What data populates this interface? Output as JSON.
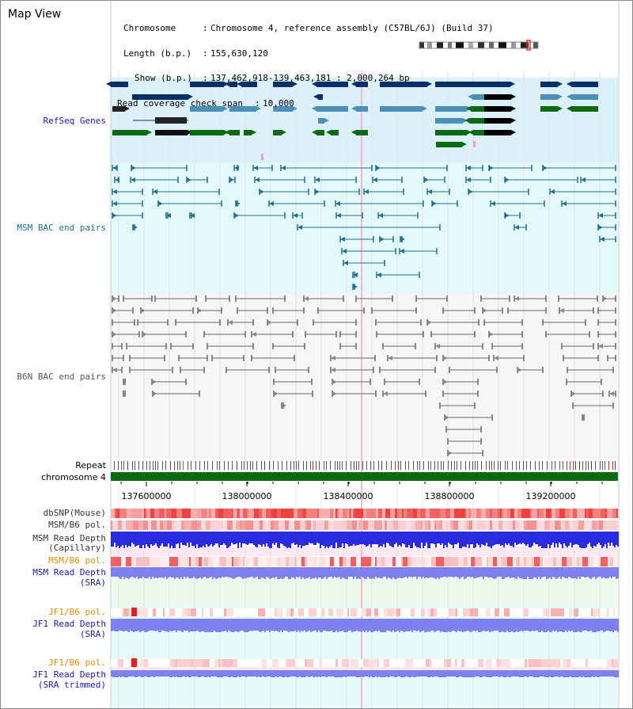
{
  "page_title": "Map View",
  "chromosome_info": {
    "chromosome_label": "Chromosome",
    "chromosome_value": "Chromosome 4, reference assembly (C57BL/6J) (Build 37)",
    "length_label": "Length (b.p.)",
    "length_value": "155,630,120",
    "show_label": "Show (b.p.)",
    "show_value": "137,462,918-139,463,181 : 2,000,264 bp",
    "coverage_label": "Read coverage check span",
    "coverage_value": "10,000"
  },
  "tracks": {
    "refseq": "RefSeq Genes",
    "msm_bac": "MSM BAC end pairs",
    "b6n_bac": "B6N BAC end pairs",
    "repeat": "Repeat",
    "chromosome": "chromosome 4",
    "dbsnp": "dbSNP(Mouse)",
    "msm_b6_pol_1": "MSM/B6 pol.",
    "msm_depth_cap_1": "MSM Read Depth",
    "msm_depth_cap_2": "(Capillary)",
    "msm_b6_pol_2": "MSM/B6 pol.",
    "msm_depth_sra_1": "MSM Read Depth",
    "msm_depth_sra_2": "(SRA)",
    "jf1_b6_pol_1": "JF1/B6 pol.",
    "jf1_depth_sra_1": "JF1 Read Depth",
    "jf1_depth_sra_2": "(SRA)",
    "jf1_b6_pol_2": "JF1/B6 pol.",
    "jf1_depth_trim_1": "JF1 Read Depth",
    "jf1_depth_trim_2": "(SRA trimmed)"
  },
  "ruler": {
    "ticks": [
      "137600000",
      "138000000",
      "138400000",
      "138800000",
      "139200000"
    ]
  },
  "colors": {
    "refseq_bg": "#dcf0fa",
    "msm_bg": "#e4fafa",
    "b6n_bg": "#f4f6f8",
    "refseq_dark": "#0b2f66",
    "refseq_mid": "#4a90b8",
    "refseq_green": "#0b6a12",
    "msm_bac": "#1c7090",
    "b6n_bac": "#666666",
    "chromosome_bar": "#0b6a12",
    "depth_blue": "#2a2ae0",
    "depth_light": "#8080ee",
    "snp_red": "#f06060"
  }
}
